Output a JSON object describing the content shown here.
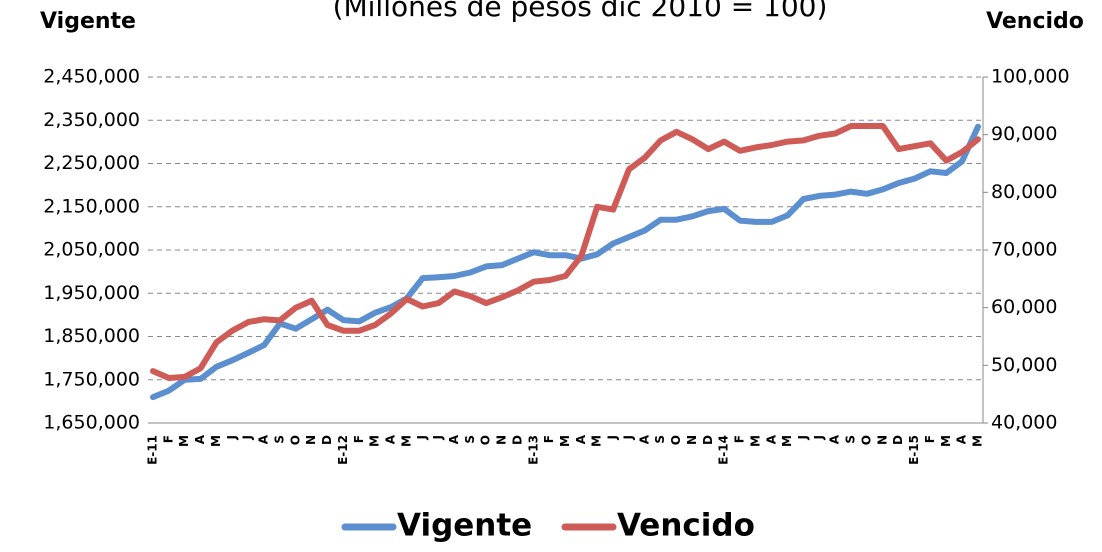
{
  "chart_data": {
    "type": "line",
    "title": "(Millones de pesos dic 2010 = 100)",
    "y_label": "Vigente",
    "y2_label": "Vencido",
    "categories": [
      "E-11",
      "F",
      "M",
      "A",
      "M",
      "J",
      "J",
      "A",
      "S",
      "O",
      "N",
      "D",
      "E-12",
      "F",
      "M",
      "A",
      "M",
      "J",
      "J",
      "A",
      "S",
      "O",
      "N",
      "D",
      "E-13",
      "F",
      "M",
      "A",
      "M",
      "J",
      "J",
      "A",
      "S",
      "O",
      "N",
      "D",
      "E-14",
      "F",
      "M",
      "A",
      "M",
      "J",
      "J",
      "A",
      "S",
      "O",
      "N",
      "D",
      "E-15",
      "F",
      "M",
      "A",
      "M"
    ],
    "series": [
      {
        "name": "Vigente",
        "color": "#5b8fcf",
        "axis": "y",
        "values": [
          1710000,
          1725000,
          1750000,
          1752000,
          1780000,
          1795000,
          1812000,
          1830000,
          1880000,
          1868000,
          1890000,
          1912000,
          1888000,
          1885000,
          1905000,
          1918000,
          1938000,
          1985000,
          1987000,
          1990000,
          1998000,
          2012000,
          2015000,
          2030000,
          2045000,
          2038000,
          2038000,
          2030000,
          2040000,
          2065000,
          2080000,
          2095000,
          2120000,
          2120000,
          2128000,
          2140000,
          2145000,
          2118000,
          2115000,
          2115000,
          2130000,
          2168000,
          2175000,
          2178000,
          2185000,
          2180000,
          2190000,
          2205000,
          2215000,
          2232000,
          2228000,
          2255000,
          2335000
        ]
      },
      {
        "name": "Vencido",
        "color": "#cf5b57",
        "axis": "y2",
        "values": [
          49000,
          47800,
          48000,
          49500,
          54000,
          56000,
          57500,
          58000,
          57800,
          60000,
          61200,
          57000,
          56000,
          56000,
          57000,
          59000,
          61500,
          60200,
          60800,
          62800,
          62000,
          60800,
          61800,
          63000,
          64500,
          64800,
          65500,
          69000,
          77500,
          77000,
          84000,
          86000,
          89000,
          90500,
          89200,
          87500,
          88800,
          87200,
          87800,
          88200,
          88800,
          89000,
          89800,
          90200,
          91500,
          91500,
          91500,
          87500,
          88000,
          88500,
          85500,
          87000,
          89200
        ]
      }
    ],
    "ylim": [
      1650000,
      2450000
    ],
    "yticks": [
      {
        "value": 1650000,
        "label": "1,650,000"
      },
      {
        "value": 1750000,
        "label": "1,750,000"
      },
      {
        "value": 1850000,
        "label": "1,850,000"
      },
      {
        "value": 1950000,
        "label": "1,950,000"
      },
      {
        "value": 2050000,
        "label": "2,050,000"
      },
      {
        "value": 2150000,
        "label": "2,150,000"
      },
      {
        "value": 2250000,
        "label": "2,250,000"
      },
      {
        "value": 2350000,
        "label": "2,350,000"
      },
      {
        "value": 2450000,
        "label": "2,450,000"
      }
    ],
    "y2lim": [
      40000,
      100000
    ],
    "y2ticks": [
      {
        "value": 40000,
        "label": "40,000"
      },
      {
        "value": 50000,
        "label": "50,000"
      },
      {
        "value": 60000,
        "label": "60,000"
      },
      {
        "value": 70000,
        "label": "70,000"
      },
      {
        "value": 80000,
        "label": "80,000"
      },
      {
        "value": 90000,
        "label": "90,000"
      },
      {
        "value": 100000,
        "label": "100,000"
      }
    ],
    "grid": true,
    "legend": "bottom"
  }
}
